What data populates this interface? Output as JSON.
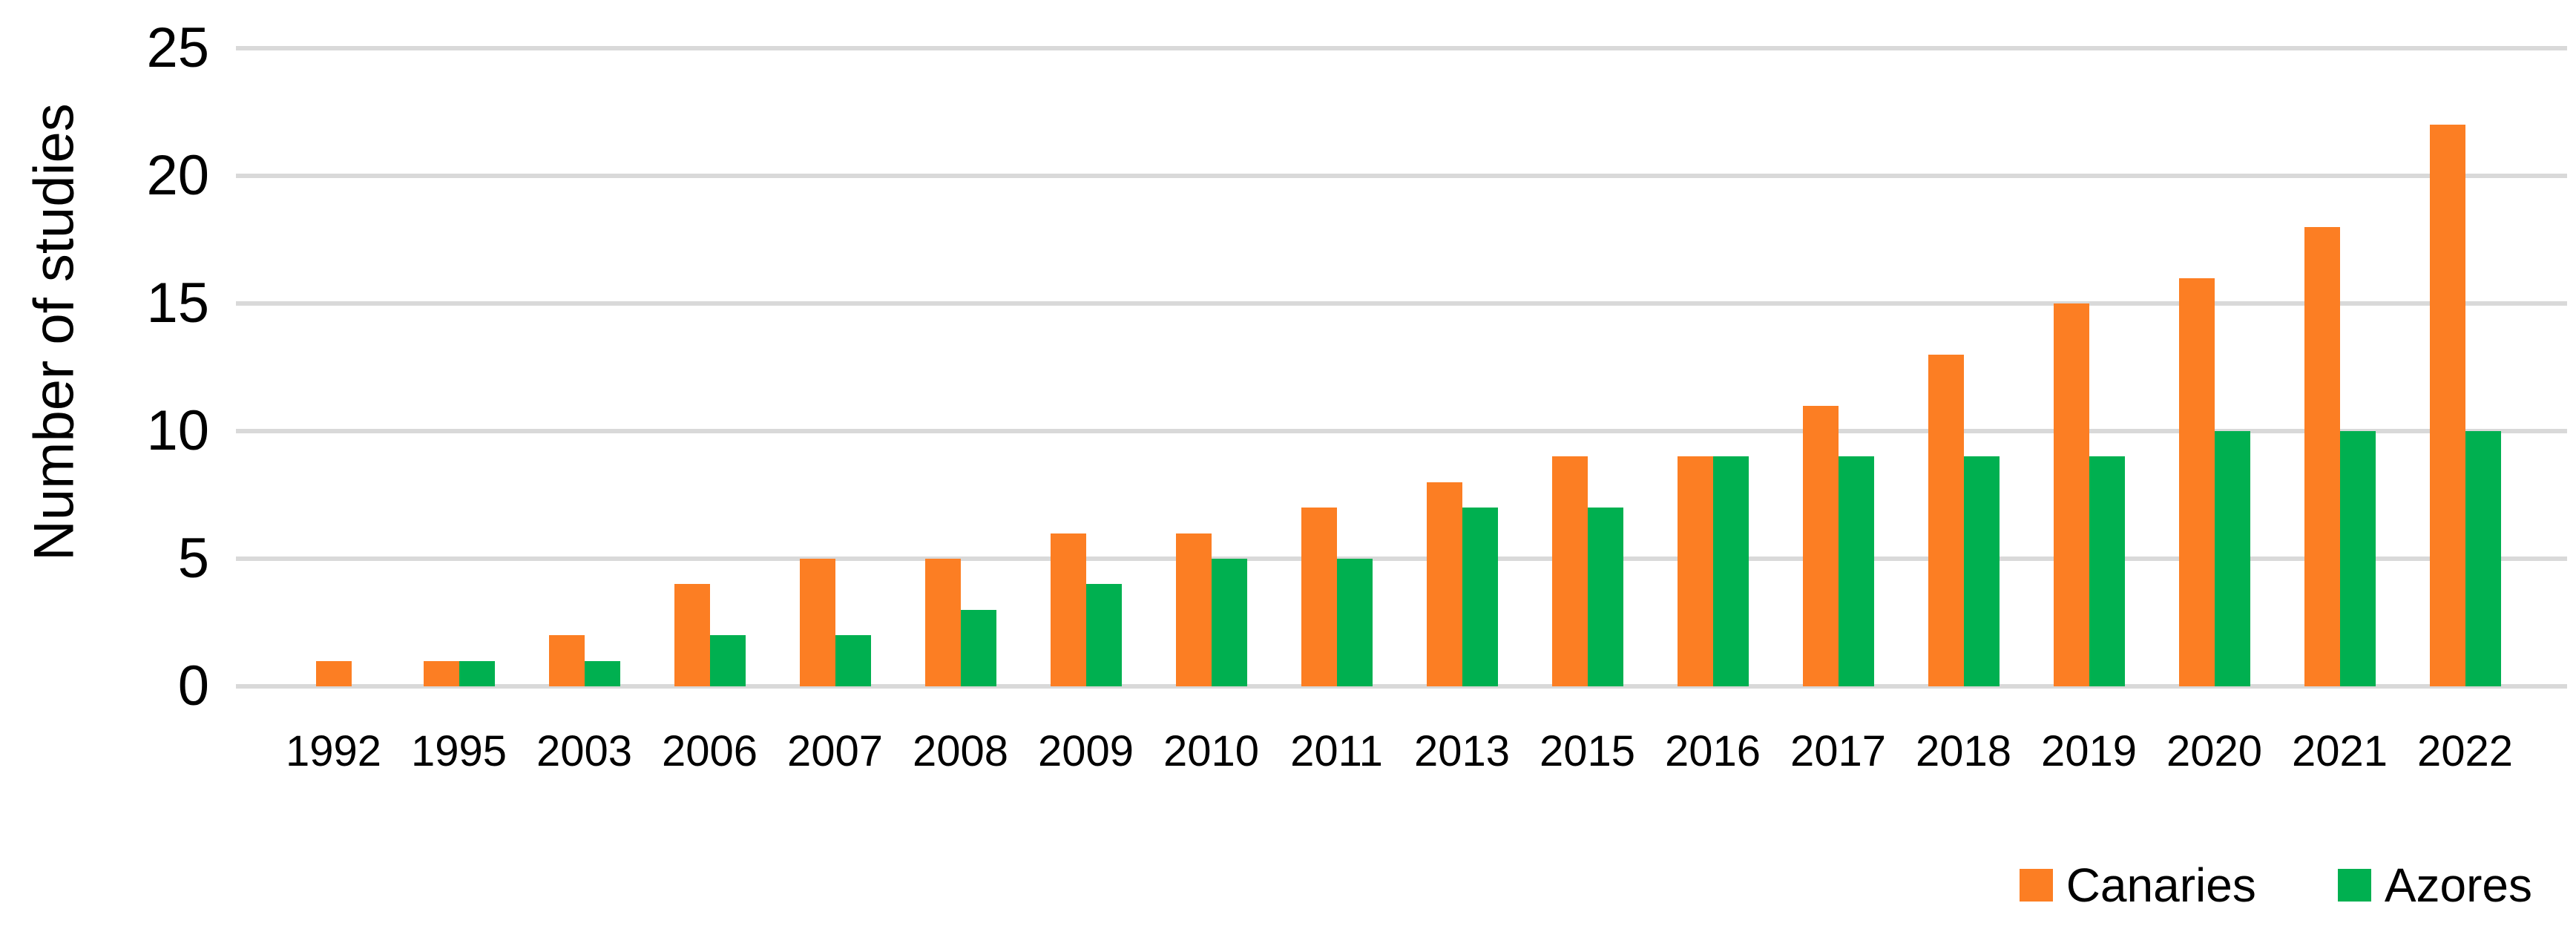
{
  "chart_data": {
    "type": "bar",
    "title": "",
    "xlabel": "",
    "ylabel": "Number of studies",
    "categories": [
      "1992",
      "1995",
      "2003",
      "2006",
      "2007",
      "2008",
      "2009",
      "2010",
      "2011",
      "2013",
      "2015",
      "2016",
      "2017",
      "2018",
      "2019",
      "2020",
      "2021",
      "2022"
    ],
    "series": [
      {
        "name": "Canaries",
        "color": "#FC7E23",
        "values": [
          1,
          1,
          2,
          4,
          5,
          5,
          6,
          6,
          7,
          8,
          9,
          9,
          11,
          13,
          15,
          16,
          18,
          22
        ]
      },
      {
        "name": "Azores",
        "color": "#00B050",
        "values": [
          0,
          1,
          1,
          2,
          2,
          3,
          4,
          5,
          5,
          7,
          7,
          9,
          9,
          9,
          9,
          10,
          10,
          10
        ]
      }
    ],
    "ylim": [
      0,
      25
    ],
    "yticks": [
      0,
      5,
      10,
      15,
      20,
      25
    ],
    "grid": "horizontal",
    "gridline_color": "#D9D9D9",
    "legend_position": "bottom-right",
    "legend_labels": [
      "Canaries",
      "Azores"
    ]
  },
  "colors": {
    "background": "#FFFFFF",
    "text": "#000000",
    "gridline": "#D9D9D9",
    "canaries": "#FC7E23",
    "azores": "#00B050"
  }
}
